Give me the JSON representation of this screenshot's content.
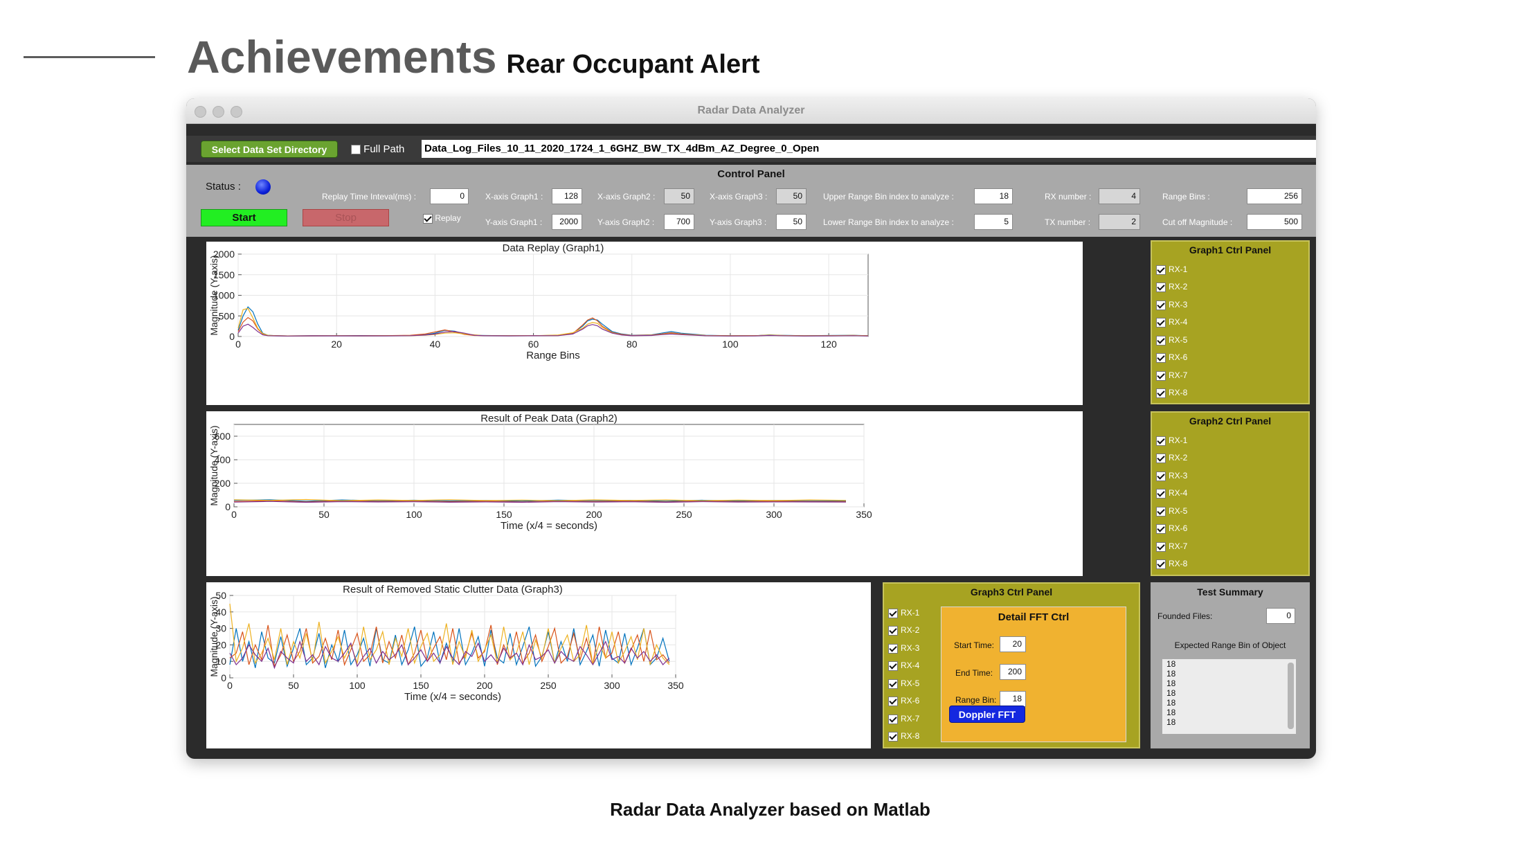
{
  "slide": {
    "title": "Achievements",
    "subtitle": "Rear Occupant Alert",
    "caption": "Radar Data Analyzer based on Matlab"
  },
  "window": {
    "title": "Radar Data Analyzer"
  },
  "toolbar": {
    "select_dir_label": "Select Data Set Directory",
    "full_path_label": "Full Path",
    "full_path_checked": false,
    "path_value": "Data_Log_Files_10_11_2020_1724_1_6GHZ_BW_TX_4dBm_AZ_Degree_0_Open"
  },
  "control_panel": {
    "title": "Control Panel",
    "status_label": "Status :",
    "status_color": "#0b1fd9",
    "start_label": "Start",
    "stop_label": "Stop",
    "replay_label": "Replay",
    "replay_checked": true,
    "replay_interval_label": "Replay Time Inteval(ms) :",
    "replay_interval_value": "0",
    "xaxis_g1_label": "X-axis Graph1 :",
    "xaxis_g1_value": "128",
    "yaxis_g1_label": "Y-axis Graph1 :",
    "yaxis_g1_value": "2000",
    "xaxis_g2_label": "X-axis Graph2 :",
    "xaxis_g2_value": "50",
    "yaxis_g2_label": "Y-axis Graph2 :",
    "yaxis_g2_value": "700",
    "xaxis_g3_label": "X-axis Graph3 :",
    "xaxis_g3_value": "50",
    "yaxis_g3_label": "Y-axis Graph3 :",
    "yaxis_g3_value": "50",
    "upper_bin_label": "Upper Range Bin index to analyze :",
    "upper_bin_value": "18",
    "lower_bin_label": "Lower Range Bin index to analyze :",
    "lower_bin_value": "5",
    "rx_number_label": "RX number :",
    "rx_number_value": "4",
    "tx_number_label": "TX number :",
    "tx_number_value": "2",
    "range_bins_label": "Range Bins :",
    "range_bins_value": "256",
    "cutoff_label": "Cut off Magnitude :",
    "cutoff_value": "500"
  },
  "graph1_panel": {
    "title": "Graph1 Ctrl Panel",
    "items": [
      "RX-1",
      "RX-2",
      "RX-3",
      "RX-4",
      "RX-5",
      "RX-6",
      "RX-7",
      "RX-8"
    ]
  },
  "graph2_panel": {
    "title": "Graph2 Ctrl Panel",
    "items": [
      "RX-1",
      "RX-2",
      "RX-3",
      "RX-4",
      "RX-5",
      "RX-6",
      "RX-7",
      "RX-8"
    ]
  },
  "graph3_panel": {
    "title": "Graph3 Ctrl Panel",
    "items": [
      "RX-1",
      "RX-2",
      "RX-3",
      "RX-4",
      "RX-5",
      "RX-6",
      "RX-7",
      "RX-8"
    ]
  },
  "fft_ctrl": {
    "title": "Detail FFT Ctrl",
    "start_label": "Start Time:",
    "start_value": "20",
    "end_label": "End Time:",
    "end_value": "200",
    "bin_label": "Range Bin:",
    "bin_value": "18",
    "doppler_label": "Doppler FFT"
  },
  "test_summary": {
    "title": "Test Summary",
    "founded_label": "Founded Files:",
    "founded_value": "0",
    "expected_label": "Expected Range Bin of Object",
    "list": [
      "18",
      "18",
      "18",
      "18",
      "18",
      "18",
      "18"
    ]
  },
  "colors": {
    "series": [
      "#0072bd",
      "#d95319",
      "#edb120",
      "#7e2f8e",
      "#77ac30",
      "#4dbeee",
      "#a2142f",
      "#333333"
    ]
  },
  "chart_data": [
    {
      "type": "line",
      "title": "Data Replay (Graph1)",
      "xlabel": "Range Bins",
      "ylabel": "Magnitude (Y-axis)",
      "xlim": [
        0,
        128
      ],
      "ylim": [
        0,
        2000
      ],
      "xticks": [
        "0",
        "20",
        "40",
        "60",
        "80",
        "100",
        "120"
      ],
      "yticks": [
        "0",
        "500",
        "1000",
        "1500",
        "2000"
      ],
      "grid": true,
      "x": [
        0,
        1,
        2,
        3,
        4,
        5,
        6,
        8,
        10,
        15,
        20,
        25,
        30,
        35,
        38,
        40,
        42,
        44,
        46,
        48,
        50,
        55,
        60,
        65,
        68,
        70,
        71,
        72,
        73,
        74,
        76,
        78,
        80,
        84,
        86,
        88,
        90,
        95,
        100,
        105,
        108,
        110,
        115,
        120,
        125,
        128
      ],
      "series": [
        {
          "values": [
            150,
            500,
            720,
            600,
            300,
            80,
            30,
            20,
            15,
            20,
            18,
            22,
            20,
            25,
            40,
            80,
            150,
            130,
            60,
            30,
            25,
            20,
            20,
            30,
            80,
            250,
            380,
            420,
            400,
            300,
            120,
            60,
            30,
            40,
            80,
            120,
            80,
            30,
            20,
            20,
            40,
            30,
            20,
            25,
            30,
            20
          ]
        },
        {
          "values": [
            120,
            350,
            460,
            380,
            180,
            60,
            25,
            18,
            15,
            18,
            20,
            18,
            22,
            30,
            60,
            110,
            160,
            110,
            50,
            25,
            20,
            18,
            22,
            25,
            70,
            280,
            400,
            450,
            380,
            250,
            100,
            50,
            25,
            35,
            60,
            90,
            60,
            25,
            18,
            22,
            30,
            25,
            18,
            20,
            25,
            18
          ]
        },
        {
          "values": [
            200,
            650,
            680,
            450,
            200,
            70,
            30,
            20,
            15,
            15,
            20,
            15,
            18,
            20,
            30,
            50,
            80,
            90,
            60,
            40,
            20,
            18,
            20,
            35,
            90,
            200,
            300,
            340,
            320,
            220,
            90,
            40,
            20,
            30,
            50,
            70,
            50,
            25,
            15,
            18,
            35,
            28,
            15,
            22,
            28,
            15
          ]
        },
        {
          "values": [
            80,
            250,
            300,
            220,
            120,
            40,
            20,
            15,
            12,
            15,
            15,
            15,
            15,
            20,
            35,
            60,
            110,
            120,
            80,
            30,
            18,
            15,
            18,
            20,
            60,
            180,
            260,
            290,
            260,
            180,
            80,
            35,
            18,
            25,
            45,
            60,
            45,
            18,
            12,
            15,
            25,
            20,
            12,
            15,
            20,
            12
          ]
        }
      ]
    },
    {
      "type": "line",
      "title": "Result of Peak Data (Graph2)",
      "xlabel": "Time (x/4 = seconds)",
      "ylabel": "Magnitude (Y-axis)",
      "xlim": [
        0,
        350
      ],
      "ylim": [
        0,
        700
      ],
      "xticks": [
        "0",
        "50",
        "100",
        "150",
        "200",
        "250",
        "300",
        "350"
      ],
      "yticks": [
        "0",
        "200",
        "400",
        "600"
      ],
      "grid": true,
      "x": [
        0,
        20,
        40,
        60,
        80,
        100,
        120,
        140,
        160,
        180,
        200,
        220,
        240,
        260,
        280,
        300,
        320,
        340
      ],
      "series": [
        {
          "values": [
            55,
            60,
            48,
            58,
            52,
            56,
            50,
            54,
            49,
            57,
            52,
            55,
            48,
            56,
            50,
            54,
            52,
            50
          ]
        },
        {
          "values": [
            45,
            52,
            42,
            50,
            46,
            48,
            44,
            47,
            42,
            49,
            45,
            48,
            42,
            49,
            44,
            47,
            45,
            44
          ]
        },
        {
          "values": [
            60,
            55,
            62,
            52,
            58,
            54,
            60,
            53,
            57,
            52,
            59,
            54,
            58,
            52,
            57,
            53,
            58,
            55
          ]
        },
        {
          "values": [
            40,
            46,
            38,
            44,
            41,
            43,
            39,
            42,
            38,
            44,
            40,
            43,
            38,
            44,
            40,
            42,
            41,
            40
          ]
        }
      ]
    },
    {
      "type": "line",
      "title": "Result of Removed Static Clutter Data (Graph3)",
      "xlabel": "Time (x/4 = seconds)",
      "ylabel": "Magnitude (Y-axis)",
      "xlim": [
        0,
        350
      ],
      "ylim": [
        0,
        50
      ],
      "xticks": [
        "0",
        "50",
        "100",
        "150",
        "200",
        "250",
        "300",
        "350"
      ],
      "yticks": [
        "0",
        "10",
        "20",
        "30",
        "40",
        "50"
      ],
      "grid": true,
      "x": [
        0,
        5,
        10,
        15,
        20,
        25,
        30,
        35,
        40,
        45,
        50,
        55,
        60,
        65,
        70,
        75,
        80,
        85,
        90,
        95,
        100,
        105,
        110,
        115,
        120,
        125,
        130,
        135,
        140,
        145,
        150,
        155,
        160,
        165,
        170,
        175,
        180,
        185,
        190,
        195,
        200,
        205,
        210,
        215,
        220,
        225,
        230,
        235,
        240,
        245,
        250,
        255,
        260,
        265,
        270,
        275,
        280,
        285,
        290,
        295,
        300,
        305,
        310,
        315,
        320,
        325,
        330,
        335,
        340,
        345
      ],
      "series": [
        {
          "values": [
            8,
            30,
            10,
            22,
            6,
            28,
            12,
            9,
            25,
            7,
            18,
            30,
            8,
            12,
            27,
            6,
            20,
            10,
            29,
            8,
            14,
            24,
            7,
            30,
            11,
            9,
            26,
            8,
            17,
            31,
            7,
            12,
            28,
            9,
            21,
            10,
            30,
            8,
            15,
            25,
            7,
            29,
            12,
            9,
            27,
            8,
            19,
            31,
            7,
            13,
            28,
            9,
            22,
            10,
            30,
            8,
            16,
            26,
            7,
            29,
            12,
            9,
            27,
            8,
            18,
            30,
            8,
            12,
            24,
            10
          ]
        },
        {
          "values": [
            12,
            15,
            28,
            8,
            20,
            11,
            32,
            7,
            14,
            26,
            10,
            16,
            30,
            9,
            13,
            24,
            11,
            29,
            8,
            17,
            27,
            10,
            14,
            31,
            9,
            22,
            12,
            26,
            8,
            15,
            29,
            10,
            18,
            25,
            11,
            30,
            9,
            14,
            27,
            12,
            16,
            32,
            8,
            20,
            11,
            28,
            9,
            15,
            26,
            10,
            19,
            30,
            9,
            13,
            27,
            11,
            24,
            8,
            31,
            12,
            15,
            28,
            9,
            17,
            26,
            10,
            29,
            11,
            14,
            9
          ]
        },
        {
          "values": [
            45,
            10,
            18,
            33,
            9,
            15,
            24,
            11,
            30,
            8,
            22,
            12,
            27,
            10,
            34,
            9,
            16,
            25,
            12,
            20,
            9,
            31,
            11,
            17,
            28,
            8,
            24,
            13,
            30,
            9,
            19,
            27,
            10,
            14,
            33,
            8,
            22,
            12,
            29,
            10,
            17,
            26,
            9,
            31,
            11,
            15,
            28,
            8,
            23,
            12,
            30,
            9,
            18,
            26,
            10,
            14,
            32,
            8,
            21,
            12,
            28,
            9,
            16,
            25,
            11,
            30,
            8,
            20,
            12,
            8
          ]
        },
        {
          "values": [
            15,
            8,
            12,
            20,
            14,
            10,
            18,
            6,
            16,
            12,
            9,
            22,
            10,
            14,
            8,
            19,
            12,
            10,
            15,
            21,
            7,
            13,
            18,
            9,
            16,
            11,
            14,
            20,
            8,
            12,
            17,
            10,
            15,
            9,
            19,
            12,
            8,
            16,
            13,
            21,
            10,
            14,
            9,
            18,
            12,
            15,
            8,
            20,
            11,
            13,
            17,
            9,
            16,
            12,
            10,
            19,
            14,
            8,
            15,
            22,
            11,
            13,
            9,
            18,
            12,
            16,
            10,
            14,
            8,
            12
          ]
        }
      ]
    }
  ]
}
